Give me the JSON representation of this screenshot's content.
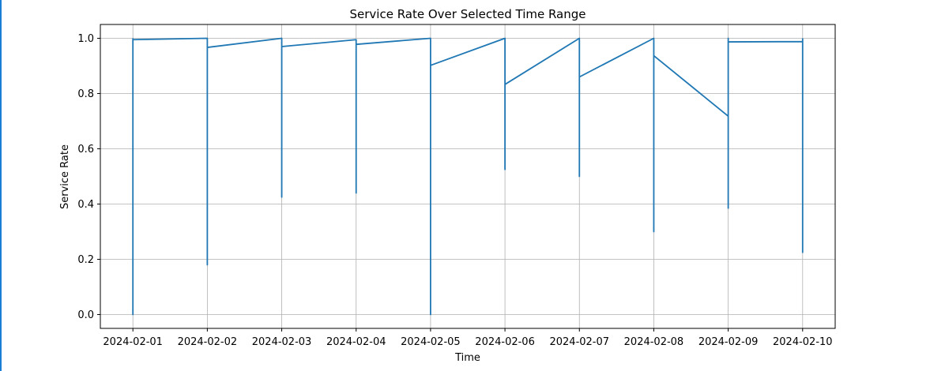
{
  "chart_data": {
    "type": "line",
    "title": "Service Rate Over Selected Time Range",
    "xlabel": "Time",
    "ylabel": "Service Rate",
    "x_ticks": [
      "2024-02-01",
      "2024-02-02",
      "2024-02-03",
      "2024-02-04",
      "2024-02-05",
      "2024-02-06",
      "2024-02-07",
      "2024-02-08",
      "2024-02-09",
      "2024-02-10"
    ],
    "y_ticks": [
      "0.0",
      "0.2",
      "0.4",
      "0.6",
      "0.8",
      "1.0"
    ],
    "xlim": [
      "2024-01-31T13:30",
      "2024-02-10T10:30"
    ],
    "ylim": [
      -0.05,
      1.05
    ],
    "grid": true,
    "color": "#1f77b4",
    "series": [
      {
        "points": [
          [
            "2024-02-01T00:00",
            1.0
          ],
          [
            "2024-02-01T00:00",
            0.0
          ],
          [
            "2024-02-01T00:00",
            0.995
          ],
          [
            "2024-02-02T00:00",
            1.0
          ],
          [
            "2024-02-02T00:00",
            0.18
          ],
          [
            "2024-02-02T00:00",
            0.967
          ],
          [
            "2024-02-03T00:00",
            1.0
          ],
          [
            "2024-02-03T00:00",
            0.425
          ],
          [
            "2024-02-03T00:00",
            0.97
          ],
          [
            "2024-02-04T00:00",
            0.995
          ],
          [
            "2024-02-04T00:00",
            0.44
          ],
          [
            "2024-02-04T00:00",
            0.978
          ],
          [
            "2024-02-05T00:00",
            1.0
          ],
          [
            "2024-02-05T00:00",
            0.0
          ],
          [
            "2024-02-05T00:00",
            0.902
          ],
          [
            "2024-02-06T00:00",
            1.0
          ],
          [
            "2024-02-06T00:00",
            0.525
          ],
          [
            "2024-02-06T00:00",
            0.833
          ],
          [
            "2024-02-07T00:00",
            1.0
          ],
          [
            "2024-02-07T00:00",
            0.5
          ],
          [
            "2024-02-07T00:00",
            0.86
          ],
          [
            "2024-02-08T00:00",
            1.0
          ],
          [
            "2024-02-08T00:00",
            0.3
          ],
          [
            "2024-02-08T00:00",
            0.937
          ],
          [
            "2024-02-09T00:00",
            0.718
          ],
          [
            "2024-02-09T00:00",
            0.385
          ],
          [
            "2024-02-09T00:00",
            1.0
          ],
          [
            "2024-02-09T00:00",
            0.987
          ],
          [
            "2024-02-10T00:00",
            0.988
          ],
          [
            "2024-02-10T00:00",
            0.225
          ],
          [
            "2024-02-10T00:00",
            1.0
          ]
        ]
      }
    ]
  }
}
